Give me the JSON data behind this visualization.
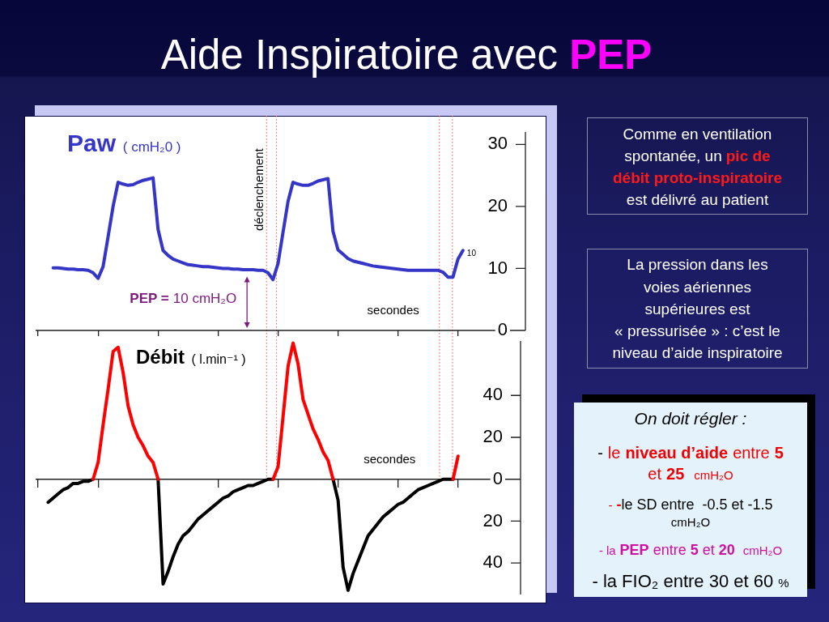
{
  "chart_data": [
    {
      "type": "line",
      "title": "Aide Inspiratoire avec PEP",
      "ylabel": "Paw ( cmH₂0 )",
      "xlabel": "secondes",
      "categories": [
        null,
        null,
        null,
        null,
        null,
        null,
        null,
        null,
        null,
        null,
        null,
        null,
        null,
        null,
        null,
        null,
        null,
        null,
        null,
        null,
        null,
        null,
        null,
        null,
        null,
        null,
        null,
        null,
        null,
        null,
        null,
        null,
        null,
        null,
        null,
        null,
        null,
        null,
        null,
        null,
        null,
        null,
        null,
        null,
        null,
        null,
        null,
        null,
        null,
        null,
        null,
        null,
        null,
        null,
        null,
        null,
        null,
        null,
        null,
        null,
        null,
        null,
        null,
        null,
        null,
        null,
        null,
        null,
        null,
        null,
        null,
        null,
        null,
        null,
        null,
        null,
        null,
        null,
        null,
        null,
        null,
        null,
        null,
        null,
        null,
        null,
        null,
        null,
        null,
        null,
        null,
        null,
        null,
        null,
        null,
        null,
        null,
        null
      ],
      "ylim": [
        0,
        32
      ],
      "yticks": [
        0,
        10,
        20,
        30
      ],
      "tick_labels": "y",
      "marker": "none",
      "series": [
        {
          "color": "#3535c8",
          "values": [
            null,
            null,
            null,
            10.1,
            10.1,
            10,
            9.9,
            9.9,
            9.8,
            9.8,
            9.7,
            9.3,
            8.4,
            10.3,
            15.1,
            20,
            23.9,
            23.6,
            23.4,
            23.5,
            23.9,
            24.2,
            24.4,
            24.6,
            16.3,
            12.9,
            12.1,
            11.5,
            11.2,
            10.9,
            10.6,
            10.5,
            10.4,
            10.3,
            10.3,
            10.2,
            10.1,
            10,
            10,
            9.9,
            9.9,
            9.8,
            9.8,
            9.8,
            9.7,
            9.7,
            9.3,
            8.2,
            10.8,
            15.8,
            20.8,
            23.9,
            23.6,
            23.4,
            23.4,
            23.7,
            24.1,
            24.3,
            24.5,
            16,
            13,
            12.3,
            11.6,
            11.2,
            11,
            10.8,
            10.6,
            10.4,
            10.3,
            10.2,
            10.1,
            10,
            9.9,
            9.8,
            9.7,
            9.7,
            9.7,
            9.7,
            9.7,
            9.7,
            9.7,
            9.4,
            8.6,
            8.6,
            11.5,
            12.9,
            null,
            null,
            null,
            null,
            null,
            null,
            null,
            null,
            null,
            null,
            null,
            null
          ]
        }
      ],
      "annotations": [
        {
          "text": "PEP = 10 cmH₂O",
          "y": 10
        },
        "10",
        "déclenchement"
      ]
    },
    {
      "type": "line",
      "ylabel": "Débit ( l.min⁻¹ )",
      "xlabel": "secondes",
      "categories": [
        null,
        null,
        null,
        null,
        null,
        null,
        null,
        null,
        null,
        null,
        null,
        null,
        null,
        null,
        null,
        null,
        null,
        null,
        null,
        null,
        null,
        null,
        null,
        null,
        null,
        null,
        null,
        null,
        null,
        null,
        null,
        null,
        null,
        null,
        null,
        null,
        null,
        null,
        null,
        null,
        null,
        null,
        null,
        null,
        null,
        null,
        null,
        null,
        null,
        null,
        null,
        null,
        null,
        null,
        null,
        null,
        null,
        null,
        null,
        null,
        null,
        null,
        null,
        null,
        null,
        null,
        null,
        null,
        null,
        null,
        null,
        null,
        null,
        null,
        null,
        null,
        null,
        null,
        null,
        null,
        null,
        null,
        null,
        null,
        null,
        null,
        null,
        null,
        null,
        null,
        null,
        null,
        null,
        null,
        null,
        null,
        null
      ],
      "ylim": [
        -55,
        66
      ],
      "yticks": [
        40,
        20,
        0,
        {
          "value": -20,
          "label": "20"
        },
        {
          "value": -40,
          "label": "40"
        }
      ],
      "tick_labels": "y",
      "marker": "none",
      "series": [
        {
          "color": "#ff0000",
          "values": [
            null,
            null,
            null,
            null,
            null,
            null,
            null,
            null,
            null,
            null,
            null,
            0,
            8,
            26,
            43,
            61,
            63,
            51,
            35,
            26,
            20,
            16,
            11,
            8,
            0,
            null,
            null,
            null,
            null,
            null,
            null,
            null,
            null,
            null,
            null,
            null,
            null,
            null,
            null,
            null,
            null,
            null,
            null,
            null,
            null,
            null,
            null,
            0,
            6,
            30,
            54,
            65,
            55,
            38,
            31,
            24,
            19,
            13,
            9,
            0,
            null,
            null,
            null,
            null,
            null,
            null,
            null,
            null,
            null,
            null,
            null,
            null,
            null,
            null,
            null,
            null,
            null,
            null,
            null,
            null,
            null,
            null,
            null,
            0,
            11,
            null,
            null,
            null,
            null,
            null,
            null,
            null,
            null,
            null,
            null,
            null,
            null
          ]
        },
        {
          "color": "#000000",
          "values": [
            null,
            null,
            -11,
            -9,
            -7,
            -5,
            -4,
            -2,
            -2,
            -1,
            -1,
            0,
            null,
            null,
            null,
            null,
            null,
            null,
            null,
            null,
            null,
            null,
            null,
            null,
            0,
            -50,
            -44,
            -37,
            -31,
            -27,
            -25,
            -22,
            -19,
            -17,
            -15,
            -13,
            -11,
            -9,
            -8,
            -6,
            -5,
            -4,
            -3,
            -3,
            -2,
            -1,
            0,
            0,
            null,
            null,
            null,
            null,
            null,
            null,
            null,
            null,
            null,
            null,
            null,
            0,
            -10,
            -42,
            -53,
            -45,
            -39,
            -33,
            -27,
            -24,
            -21,
            -18,
            -16,
            -14,
            -12,
            -11,
            -9,
            -7,
            -5,
            -4,
            -3,
            -2,
            -1,
            0,
            0,
            0,
            null,
            null,
            null,
            null,
            null,
            null,
            null,
            null,
            null,
            null,
            null,
            null,
            null
          ]
        }
      ]
    },
    {
      "type": "other",
      "annotations": [
        "Comme en ventilation",
        "spontanée, un",
        "pic de",
        "débit proto-inspiratoire",
        "est délivré au patient"
      ]
    },
    {
      "type": "other",
      "annotations": [
        "La pression dans les",
        "voies aériennes",
        "supérieures est",
        "« pressurisée » : c’est le",
        "niveau d’aide inspiratoire"
      ]
    },
    {
      "type": "other",
      "title": "On doit régler :",
      "annotations": [
        "-",
        "le",
        "niveau d’aide",
        "entre",
        "5",
        "et",
        "25",
        "cmH₂O",
        "-",
        "-",
        "le SD entre  -0.5 et -1.5",
        "cmH₂O",
        "-",
        "la",
        "PEP",
        "entre",
        "5",
        "et",
        "20",
        "cmH₂O",
        "- la FIO₂ entre 30 et 60",
        "%"
      ]
    }
  ]
}
